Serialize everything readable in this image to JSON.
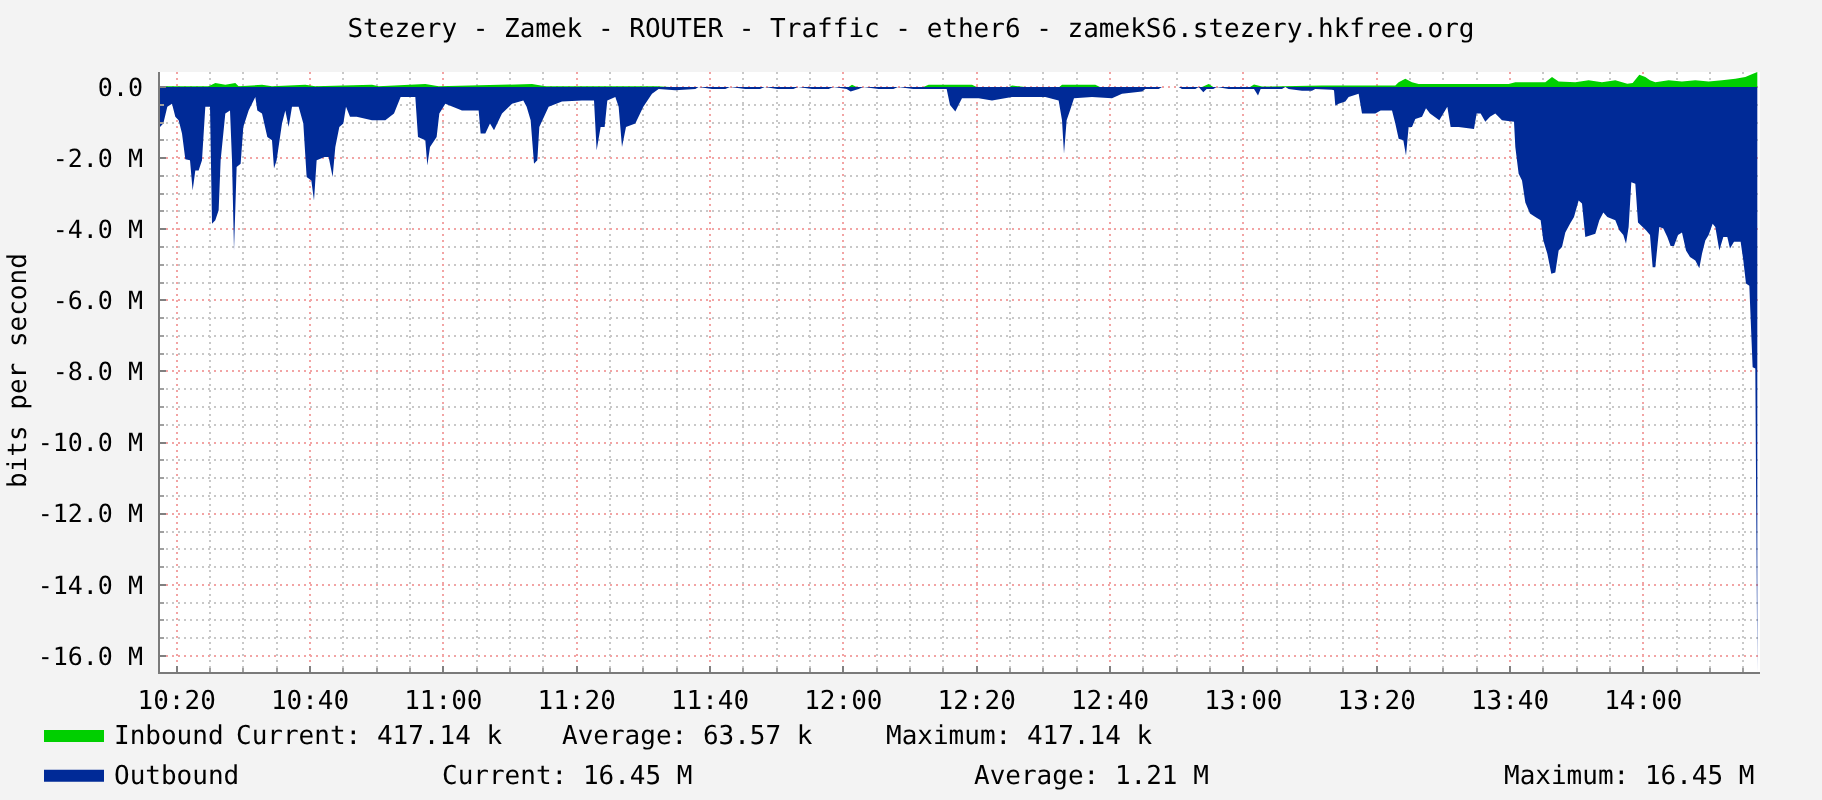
{
  "chart_data": {
    "type": "area",
    "title": "Stezery - Zamek - ROUTER - Traffic - ether6 - zamekS6.stezery.hkfree.org",
    "ylabel": "bits per second",
    "xlim": [
      10.2917,
      14.2917
    ],
    "ylim": [
      -16.45,
      0.42
    ],
    "xticks": [
      {
        "value": 10.3333,
        "label": "10:20"
      },
      {
        "value": 10.4167,
        "label": null
      },
      {
        "value": 10.5,
        "label": null
      },
      {
        "value": 10.5833,
        "label": null
      },
      {
        "value": 10.6667,
        "label": "10:40"
      },
      {
        "value": 10.75,
        "label": null
      },
      {
        "value": 10.8333,
        "label": null
      },
      {
        "value": 10.9167,
        "label": null
      },
      {
        "value": 11,
        "label": "11:00"
      },
      {
        "value": 11.0833,
        "label": null
      },
      {
        "value": 11.1667,
        "label": null
      },
      {
        "value": 11.25,
        "label": null
      },
      {
        "value": 11.3333,
        "label": "11:20"
      },
      {
        "value": 11.4167,
        "label": null
      },
      {
        "value": 11.5,
        "label": null
      },
      {
        "value": 11.5833,
        "label": null
      },
      {
        "value": 11.6667,
        "label": "11:40"
      },
      {
        "value": 11.75,
        "label": null
      },
      {
        "value": 11.8333,
        "label": null
      },
      {
        "value": 11.9167,
        "label": null
      },
      {
        "value": 12,
        "label": "12:00"
      },
      {
        "value": 12.0833,
        "label": null
      },
      {
        "value": 12.1667,
        "label": null
      },
      {
        "value": 12.25,
        "label": null
      },
      {
        "value": 12.3333,
        "label": "12:20"
      },
      {
        "value": 12.4167,
        "label": null
      },
      {
        "value": 12.5,
        "label": null
      },
      {
        "value": 12.5833,
        "label": null
      },
      {
        "value": 12.6667,
        "label": "12:40"
      },
      {
        "value": 12.75,
        "label": null
      },
      {
        "value": 12.8333,
        "label": null
      },
      {
        "value": 12.9167,
        "label": null
      },
      {
        "value": 13,
        "label": "13:00"
      },
      {
        "value": 13.0833,
        "label": null
      },
      {
        "value": 13.1667,
        "label": null
      },
      {
        "value": 13.25,
        "label": null
      },
      {
        "value": 13.3333,
        "label": "13:20"
      },
      {
        "value": 13.4167,
        "label": null
      },
      {
        "value": 13.5,
        "label": null
      },
      {
        "value": 13.5833,
        "label": null
      },
      {
        "value": 13.6667,
        "label": "13:40"
      },
      {
        "value": 13.75,
        "label": null
      },
      {
        "value": 13.8333,
        "label": null
      },
      {
        "value": 13.9167,
        "label": null
      },
      {
        "value": 14,
        "label": "14:00"
      },
      {
        "value": 14.0833,
        "label": null
      },
      {
        "value": 14.1667,
        "label": null
      },
      {
        "value": 14.25,
        "label": null
      }
    ],
    "yticks": [
      {
        "value": 0,
        "label": "0.0"
      },
      {
        "value": -0.5,
        "label": null
      },
      {
        "value": -1,
        "label": null
      },
      {
        "value": -1.5,
        "label": null
      },
      {
        "value": -2,
        "label": "-2.0 M"
      },
      {
        "value": -2.5,
        "label": null
      },
      {
        "value": -3,
        "label": null
      },
      {
        "value": -3.5,
        "label": null
      },
      {
        "value": -4,
        "label": "-4.0 M"
      },
      {
        "value": -4.5,
        "label": null
      },
      {
        "value": -5,
        "label": null
      },
      {
        "value": -5.5,
        "label": null
      },
      {
        "value": -6,
        "label": "-6.0 M"
      },
      {
        "value": -6.5,
        "label": null
      },
      {
        "value": -7,
        "label": null
      },
      {
        "value": -7.5,
        "label": null
      },
      {
        "value": -8,
        "label": "-8.0 M"
      },
      {
        "value": -8.5,
        "label": null
      },
      {
        "value": -9,
        "label": null
      },
      {
        "value": -9.5,
        "label": null
      },
      {
        "value": -10,
        "label": "-10.0 M"
      },
      {
        "value": -10.5,
        "label": null
      },
      {
        "value": -11,
        "label": null
      },
      {
        "value": -11.5,
        "label": null
      },
      {
        "value": -12,
        "label": "-12.0 M"
      },
      {
        "value": -12.5,
        "label": null
      },
      {
        "value": -13,
        "label": null
      },
      {
        "value": -13.5,
        "label": null
      },
      {
        "value": -14,
        "label": "-14.0 M"
      },
      {
        "value": -14.5,
        "label": null
      },
      {
        "value": -15,
        "label": null
      },
      {
        "value": -15.5,
        "label": null
      },
      {
        "value": -16,
        "label": "-16.0 M"
      }
    ],
    "grid": true,
    "legend": "bottom left",
    "series": [
      {
        "name": "Inbound",
        "color": "#00cf00",
        "x": [
          10.2917,
          10.4133,
          10.43,
          10.455,
          10.48,
          10.4883,
          10.5467,
          10.5717,
          10.655,
          10.68,
          10.8217,
          10.8383,
          10.955,
          10.9883,
          11.2217,
          11.255,
          11.5333,
          11.5667,
          12.0133,
          12.0217,
          12.0333,
          12.2,
          12.2133,
          12.3217,
          12.3333,
          12.415,
          12.4217,
          12.455,
          12.54,
          12.5467,
          12.63,
          12.6417,
          12.8967,
          12.9133,
          12.925,
          13.0167,
          13.0267,
          13.0467,
          13.1967,
          13.38,
          13.3883,
          13.405,
          13.4217,
          13.4383,
          13.6633,
          13.68,
          13.755,
          13.7717,
          13.7883,
          13.83,
          13.8633,
          13.8967,
          13.93,
          13.96,
          13.9733,
          13.99,
          14.005,
          14.0167,
          14.03,
          14.0633,
          14.0967,
          14.13,
          14.1633,
          14.1967,
          14.23,
          14.255,
          14.2683,
          14.285
        ],
        "values": [
          0.02,
          0.02,
          0.11,
          0.06,
          0.11,
          0.02,
          0.06,
          0.02,
          0.06,
          0.02,
          0.06,
          0.02,
          0.08,
          0.02,
          0.08,
          0.02,
          0.02,
          0,
          0,
          0.06,
          0,
          0,
          0.06,
          0.06,
          0,
          0,
          0.04,
          0,
          0,
          0.06,
          0.06,
          0,
          0,
          0.08,
          0,
          0,
          0.07,
          0.01,
          0.04,
          0.04,
          0.13,
          0.23,
          0.13,
          0.08,
          0.08,
          0.13,
          0.13,
          0.28,
          0.15,
          0.13,
          0.19,
          0.13,
          0.19,
          0.09,
          0.11,
          0.34,
          0.28,
          0.19,
          0.13,
          0.19,
          0.15,
          0.19,
          0.15,
          0.19,
          0.23,
          0.28,
          0.34,
          0.41714
        ]
      },
      {
        "name": "Outbound",
        "color": "#002a97",
        "x": [
          10.2917,
          10.3,
          10.31,
          10.3217,
          10.33,
          10.3383,
          10.3467,
          10.355,
          10.3667,
          10.3733,
          10.38,
          10.3883,
          10.3967,
          10.405,
          10.4167,
          10.4217,
          10.43,
          10.4383,
          10.4433,
          10.455,
          10.4667,
          10.4717,
          10.4767,
          10.4833,
          10.4933,
          10.5,
          10.5133,
          10.53,
          10.535,
          10.5467,
          10.56,
          10.5717,
          10.5767,
          10.5833,
          10.5967,
          10.605,
          10.6133,
          10.6217,
          10.6383,
          10.65,
          10.6583,
          10.67,
          10.6767,
          10.6833,
          10.7033,
          10.7133,
          10.7233,
          10.73,
          10.74,
          10.75,
          10.7567,
          10.7667,
          10.7833,
          10.8217,
          10.855,
          10.8767,
          10.8933,
          10.93,
          10.9367,
          10.955,
          10.96,
          10.9667,
          10.9833,
          10.99,
          11.005,
          11.0467,
          11.0883,
          11.0933,
          11.105,
          11.1167,
          11.1267,
          11.1467,
          11.1717,
          11.2,
          11.2083,
          11.2183,
          11.2267,
          11.235,
          11.24,
          11.2633,
          11.2967,
          11.3467,
          11.3767,
          11.3833,
          11.3933,
          11.4033,
          11.41,
          11.43,
          11.4383,
          11.4467,
          11.4567,
          11.48,
          11.5,
          11.5217,
          11.5383,
          11.58,
          11.63,
          11.6383,
          11.6717,
          11.705,
          11.7167,
          11.755,
          11.7917,
          11.8033,
          11.835,
          11.875,
          11.8867,
          11.9217,
          11.9633,
          11.975,
          12.0083,
          12.0183,
          12.0383,
          12.05,
          12.0883,
          12.125,
          12.1367,
          12.175,
          12.2583,
          12.2667,
          12.28,
          12.2883,
          12.2967,
          12.3383,
          12.3717,
          12.4217,
          12.505,
          12.5383,
          12.5467,
          12.5517,
          12.5583,
          12.5667,
          12.5767,
          12.6217,
          12.6717,
          12.6967,
          12.7467,
          12.755,
          12.7883,
          12.7967,
          12.8383,
          12.8467,
          12.88,
          12.8883,
          12.9,
          12.9083,
          12.925,
          12.9333,
          12.9633,
          13.0133,
          13.0267,
          13.0367,
          13.0433,
          13.0967,
          13.105,
          13.1133,
          13.1467,
          13.1717,
          13.18,
          13.2217,
          13.2267,
          13.23,
          13.2383,
          13.255,
          13.2633,
          13.2883,
          13.2967,
          13.33,
          13.3433,
          13.3717,
          13.38,
          13.3883,
          13.4,
          13.4067,
          13.4133,
          13.4217,
          13.43,
          13.4467,
          13.4567,
          13.4667,
          13.49,
          13.5,
          13.51,
          13.5183,
          13.5383,
          13.5767,
          13.5833,
          13.5933,
          13.605,
          13.6167,
          13.63,
          13.6467,
          13.6767,
          13.68,
          13.6883,
          13.6967,
          13.705,
          13.7167,
          13.73,
          13.7433,
          13.75,
          13.76,
          13.77,
          13.78,
          13.7883,
          13.7967,
          13.805,
          13.8167,
          13.8267,
          13.8383,
          13.8467,
          13.855,
          13.88,
          13.89,
          13.9,
          13.91,
          13.93,
          13.94,
          13.95,
          13.9567,
          13.9633,
          13.97,
          13.98,
          13.9867,
          14.0067,
          14.0167,
          14.0233,
          14.03,
          14.04,
          14.05,
          14.06,
          14.0683,
          14.0767,
          14.0867,
          14.0967,
          14.1067,
          14.1167,
          14.13,
          14.14,
          14.1467,
          14.155,
          14.1633,
          14.1733,
          14.18,
          14.19,
          14.2,
          14.21,
          14.2167,
          14.2267,
          14.2433,
          14.25,
          14.2567,
          14.265,
          14.2733,
          14.28,
          14.285
        ],
        "values": [
          -1.13,
          -1.03,
          -0.56,
          -0.47,
          -0.84,
          -0.94,
          -1.31,
          -2.03,
          -2.06,
          -2.91,
          -2.35,
          -2.35,
          -2.06,
          -0.56,
          -0.56,
          -3.85,
          -3.75,
          -3.47,
          -2.06,
          -0.75,
          -0.66,
          -2.06,
          -4.6,
          -2.25,
          -2.16,
          -1.13,
          -0.66,
          -0.28,
          -0.66,
          -0.75,
          -1.41,
          -1.5,
          -2.29,
          -2.06,
          -1.03,
          -0.66,
          -1.13,
          -0.56,
          -0.56,
          -1.03,
          -2.53,
          -2.63,
          -3.19,
          -2.06,
          -1.97,
          -1.97,
          -2.53,
          -1.69,
          -1.13,
          -1.03,
          -0.56,
          -0.84,
          -0.84,
          -0.94,
          -0.94,
          -0.75,
          -0.28,
          -0.28,
          -1.41,
          -1.5,
          -2.21,
          -1.69,
          -1.41,
          -0.75,
          -0.47,
          -0.66,
          -0.66,
          -1.31,
          -1.31,
          -1.03,
          -1.22,
          -0.75,
          -0.47,
          -0.38,
          -0.56,
          -0.94,
          -2.16,
          -2.06,
          -1.13,
          -0.56,
          -0.41,
          -0.38,
          -0.38,
          -1.78,
          -1.13,
          -1.13,
          -0.38,
          -0.28,
          -0.56,
          -1.69,
          -1.13,
          -1.03,
          -0.56,
          -0.19,
          -0.06,
          -0.09,
          -0.06,
          0,
          -0.06,
          -0.06,
          0,
          -0.06,
          -0.06,
          0,
          -0.06,
          -0.06,
          0,
          -0.06,
          -0.06,
          0,
          -0.06,
          -0.13,
          -0.06,
          0,
          -0.06,
          -0.06,
          0,
          -0.06,
          -0.06,
          -0.51,
          -0.69,
          -0.5,
          -0.32,
          -0.32,
          -0.38,
          -0.28,
          -0.28,
          -0.38,
          -0.94,
          -1.88,
          -0.94,
          -0.66,
          -0.32,
          -0.28,
          -0.32,
          -0.19,
          -0.13,
          -0.06,
          -0.06,
          0,
          0,
          -0.06,
          -0.06,
          0,
          -0.15,
          -0.06,
          -0.06,
          0,
          -0.06,
          -0.06,
          -0.06,
          -0.24,
          -0.06,
          -0.06,
          0,
          -0.06,
          -0.11,
          -0.11,
          -0.06,
          -0.08,
          -0.09,
          -0.53,
          -0.47,
          -0.41,
          -0.28,
          -0.19,
          -0.75,
          -0.75,
          -0.66,
          -0.66,
          -1.03,
          -1.46,
          -1.5,
          -1.93,
          -1.13,
          -1.13,
          -0.9,
          -0.84,
          -0.6,
          -0.75,
          -0.94,
          -0.75,
          -0.56,
          -1.13,
          -1.13,
          -1.18,
          -0.75,
          -0.75,
          -0.98,
          -0.84,
          -0.75,
          -0.94,
          -0.98,
          -1.69,
          -2.44,
          -2.63,
          -3.25,
          -3.56,
          -3.66,
          -3.75,
          -4.32,
          -4.69,
          -5.25,
          -5.22,
          -4.6,
          -4.5,
          -4.09,
          -3.85,
          -3.66,
          -3.19,
          -3.28,
          -4.22,
          -4.13,
          -3.75,
          -3.53,
          -3.66,
          -3.75,
          -4.03,
          -4.16,
          -4.41,
          -3.94,
          -2.68,
          -2.72,
          -3.81,
          -4.03,
          -4.16,
          -5.07,
          -5.07,
          -3.94,
          -3.98,
          -4.22,
          -4.47,
          -4.47,
          -4.16,
          -4.09,
          -4.6,
          -4.78,
          -4.88,
          -5.1,
          -4.69,
          -4.32,
          -4.16,
          -3.85,
          -3.94,
          -4.6,
          -4.22,
          -4.22,
          -4.54,
          -4.35,
          -4.35,
          -4.88,
          -5.53,
          -5.59,
          -7.88,
          -7.92,
          -16.45
        ]
      }
    ],
    "annotations": [
      "Current: 417.14 k",
      "Average: 63.57 k",
      "Maximum: 417.14 k",
      "Current: 16.45 M",
      "Average: 1.21 M",
      "Maximum: 16.45 M"
    ]
  }
}
